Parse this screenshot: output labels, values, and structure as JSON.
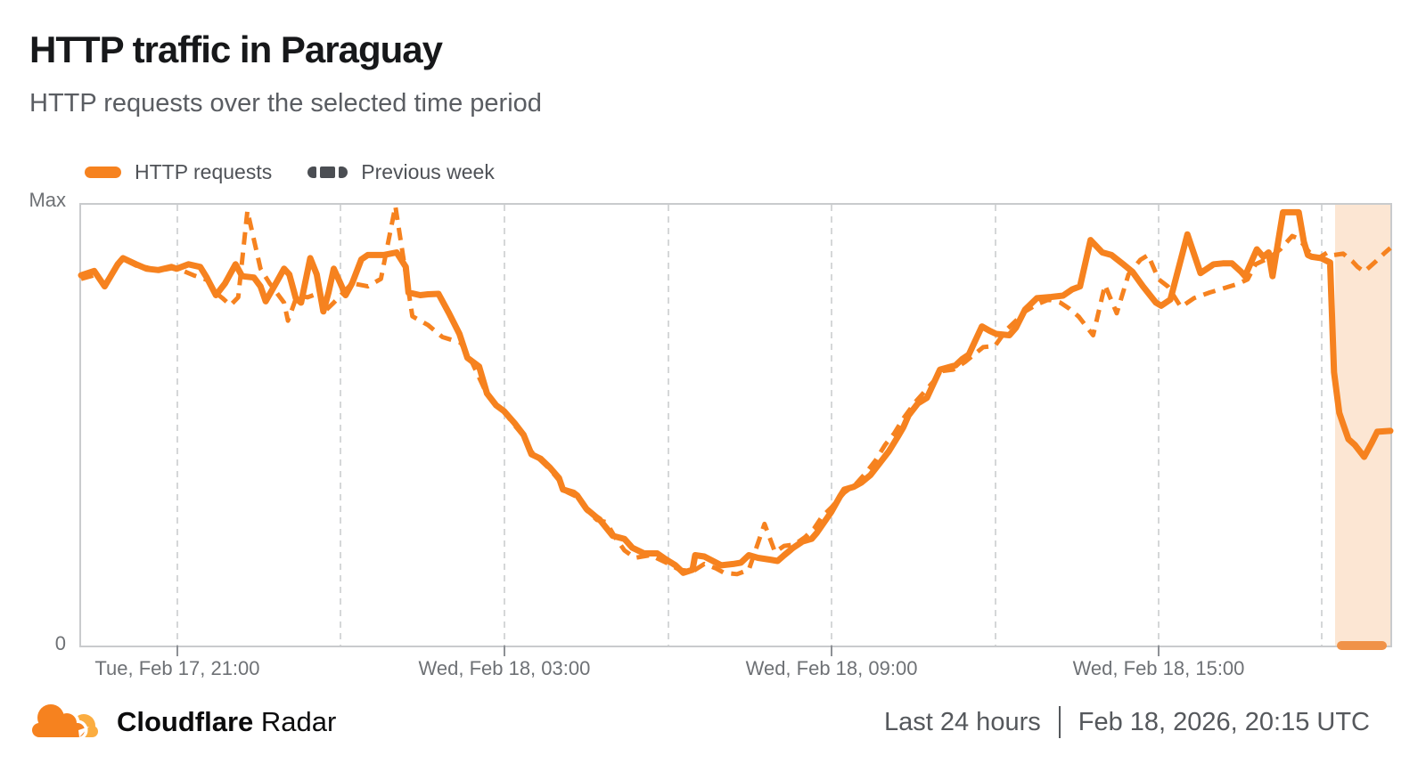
{
  "title": "HTTP traffic in Paraguay",
  "subtitle": "HTTP requests over the selected time period",
  "legend": [
    {
      "label": "HTTP requests",
      "style": "solid",
      "color": "#F6821F"
    },
    {
      "label": "Previous week",
      "style": "dashed",
      "swatch_color": "#4B4E53"
    }
  ],
  "footer": {
    "brand_bold": "Cloudflare",
    "brand_regular": "Radar",
    "time_range": "Last 24 hours",
    "timestamp": "Feb 18, 2026, 20:15 UTC"
  },
  "chart_data": {
    "type": "line",
    "title": "HTTP traffic in Paraguay",
    "xlabel": "",
    "ylabel": "",
    "grid": "vertical-dashed-every-3h",
    "legend_position": "top-left",
    "y_axis": {
      "max_label": "Max",
      "min_label": "0",
      "range": [
        0,
        1
      ]
    },
    "x_gridlines": [
      {
        "f": 0.0735,
        "label": "Tue, Feb 17, 21:00"
      },
      {
        "f": 0.1984,
        "label": ""
      },
      {
        "f": 0.3233,
        "label": "Wed, Feb 18, 03:00"
      },
      {
        "f": 0.4483,
        "label": ""
      },
      {
        "f": 0.5732,
        "label": "Wed, Feb 18, 09:00"
      },
      {
        "f": 0.6981,
        "label": ""
      },
      {
        "f": 0.823,
        "label": "Wed, Feb 18, 15:00"
      },
      {
        "f": 0.9479,
        "label": ""
      }
    ],
    "anomaly_region": {
      "start_f": 0.958,
      "end_f": 1.0,
      "fill": "#FCE6D3",
      "bar_color": "#F09248"
    },
    "series": [
      {
        "name": "HTTP requests",
        "style": "solid",
        "color": "#F6821F",
        "points": [
          [
            0,
            0.84
          ],
          [
            0.01,
            0.85
          ],
          [
            0.018,
            0.815
          ],
          [
            0.028,
            0.865
          ],
          [
            0.032,
            0.879
          ],
          [
            0.042,
            0.865
          ],
          [
            0.05,
            0.855
          ],
          [
            0.059,
            0.852
          ],
          [
            0.069,
            0.859
          ],
          [
            0.073,
            0.855
          ],
          [
            0.082,
            0.865
          ],
          [
            0.091,
            0.859
          ],
          [
            0.096,
            0.835
          ],
          [
            0.103,
            0.795
          ],
          [
            0.11,
            0.822
          ],
          [
            0.118,
            0.865
          ],
          [
            0.123,
            0.838
          ],
          [
            0.132,
            0.835
          ],
          [
            0.137,
            0.815
          ],
          [
            0.141,
            0.781
          ],
          [
            0.15,
            0.828
          ],
          [
            0.155,
            0.855
          ],
          [
            0.159,
            0.842
          ],
          [
            0.164,
            0.788
          ],
          [
            0.168,
            0.778
          ],
          [
            0.175,
            0.879
          ],
          [
            0.18,
            0.842
          ],
          [
            0.185,
            0.758
          ],
          [
            0.189,
            0.801
          ],
          [
            0.193,
            0.855
          ],
          [
            0.198,
            0.822
          ],
          [
            0.202,
            0.795
          ],
          [
            0.207,
            0.822
          ],
          [
            0.214,
            0.876
          ],
          [
            0.219,
            0.886
          ],
          [
            0.231,
            0.886
          ],
          [
            0.241,
            0.892
          ],
          [
            0.248,
            0.859
          ],
          [
            0.25,
            0.801
          ],
          [
            0.259,
            0.795
          ],
          [
            0.265,
            0.797
          ],
          [
            0.273,
            0.798
          ],
          [
            0.281,
            0.754
          ],
          [
            0.289,
            0.707
          ],
          [
            0.295,
            0.653
          ],
          [
            0.304,
            0.633
          ],
          [
            0.31,
            0.572
          ],
          [
            0.317,
            0.545
          ],
          [
            0.323,
            0.532
          ],
          [
            0.331,
            0.505
          ],
          [
            0.338,
            0.478
          ],
          [
            0.344,
            0.434
          ],
          [
            0.351,
            0.424
          ],
          [
            0.358,
            0.404
          ],
          [
            0.365,
            0.38
          ],
          [
            0.368,
            0.354
          ],
          [
            0.376,
            0.347
          ],
          [
            0.379,
            0.34
          ],
          [
            0.386,
            0.31
          ],
          [
            0.394,
            0.29
          ],
          [
            0.396,
            0.286
          ],
          [
            0.406,
            0.249
          ],
          [
            0.415,
            0.242
          ],
          [
            0.421,
            0.222
          ],
          [
            0.43,
            0.209
          ],
          [
            0.44,
            0.209
          ],
          [
            0.447,
            0.195
          ],
          [
            0.454,
            0.182
          ],
          [
            0.46,
            0.165
          ],
          [
            0.467,
            0.172
          ],
          [
            0.469,
            0.205
          ],
          [
            0.476,
            0.202
          ],
          [
            0.485,
            0.188
          ],
          [
            0.489,
            0.182
          ],
          [
            0.498,
            0.185
          ],
          [
            0.504,
            0.188
          ],
          [
            0.51,
            0.205
          ],
          [
            0.517,
            0.199
          ],
          [
            0.526,
            0.195
          ],
          [
            0.532,
            0.192
          ],
          [
            0.537,
            0.205
          ],
          [
            0.544,
            0.222
          ],
          [
            0.551,
            0.236
          ],
          [
            0.558,
            0.242
          ],
          [
            0.562,
            0.256
          ],
          [
            0.569,
            0.286
          ],
          [
            0.573,
            0.303
          ],
          [
            0.58,
            0.34
          ],
          [
            0.583,
            0.354
          ],
          [
            0.59,
            0.36
          ],
          [
            0.596,
            0.37
          ],
          [
            0.603,
            0.387
          ],
          [
            0.61,
            0.414
          ],
          [
            0.617,
            0.441
          ],
          [
            0.624,
            0.475
          ],
          [
            0.628,
            0.495
          ],
          [
            0.632,
            0.522
          ],
          [
            0.639,
            0.549
          ],
          [
            0.646,
            0.562
          ],
          [
            0.656,
            0.626
          ],
          [
            0.668,
            0.636
          ],
          [
            0.673,
            0.65
          ],
          [
            0.678,
            0.66
          ],
          [
            0.688,
            0.724
          ],
          [
            0.694,
            0.714
          ],
          [
            0.699,
            0.707
          ],
          [
            0.709,
            0.704
          ],
          [
            0.714,
            0.721
          ],
          [
            0.721,
            0.762
          ],
          [
            0.73,
            0.788
          ],
          [
            0.741,
            0.791
          ],
          [
            0.75,
            0.794
          ],
          [
            0.757,
            0.808
          ],
          [
            0.763,
            0.815
          ],
          [
            0.771,
            0.92
          ],
          [
            0.78,
            0.892
          ],
          [
            0.787,
            0.886
          ],
          [
            0.796,
            0.865
          ],
          [
            0.803,
            0.848
          ],
          [
            0.811,
            0.815
          ],
          [
            0.821,
            0.778
          ],
          [
            0.825,
            0.771
          ],
          [
            0.832,
            0.785
          ],
          [
            0.845,
            0.933
          ],
          [
            0.855,
            0.845
          ],
          [
            0.865,
            0.865
          ],
          [
            0.872,
            0.867
          ],
          [
            0.879,
            0.867
          ],
          [
            0.886,
            0.848
          ],
          [
            0.889,
            0.838
          ],
          [
            0.898,
            0.899
          ],
          [
            0.903,
            0.882
          ],
          [
            0.907,
            0.892
          ],
          [
            0.91,
            0.838
          ],
          [
            0.918,
            0.983
          ],
          [
            0.93,
            0.983
          ],
          [
            0.934,
            0.916
          ],
          [
            0.937,
            0.886
          ],
          [
            0.94,
            0.882
          ],
          [
            0.947,
            0.879
          ],
          [
            0.954,
            0.869
          ],
          [
            0.957,
            0.62
          ],
          [
            0.961,
            0.528
          ],
          [
            0.964,
            0.502
          ],
          [
            0.968,
            0.468
          ],
          [
            0.973,
            0.455
          ],
          [
            0.98,
            0.428
          ],
          [
            0.986,
            0.461
          ],
          [
            0.99,
            0.485
          ],
          [
            1,
            0.487
          ]
        ]
      },
      {
        "name": "Previous week",
        "style": "dashed",
        "color": "#F6821F",
        "points": [
          [
            0,
            0.832
          ],
          [
            0.01,
            0.84
          ],
          [
            0.018,
            0.82
          ],
          [
            0.028,
            0.862
          ],
          [
            0.032,
            0.877
          ],
          [
            0.042,
            0.862
          ],
          [
            0.05,
            0.858
          ],
          [
            0.059,
            0.85
          ],
          [
            0.069,
            0.856
          ],
          [
            0.078,
            0.85
          ],
          [
            0.086,
            0.84
          ],
          [
            0.096,
            0.83
          ],
          [
            0.103,
            0.8
          ],
          [
            0.108,
            0.788
          ],
          [
            0.114,
            0.772
          ],
          [
            0.12,
            0.79
          ],
          [
            0.127,
            0.986
          ],
          [
            0.137,
            0.855
          ],
          [
            0.144,
            0.822
          ],
          [
            0.155,
            0.778
          ],
          [
            0.158,
            0.737
          ],
          [
            0.165,
            0.795
          ],
          [
            0.173,
            0.79
          ],
          [
            0.182,
            0.8
          ],
          [
            0.186,
            0.758
          ],
          [
            0.193,
            0.778
          ],
          [
            0.2,
            0.8
          ],
          [
            0.207,
            0.822
          ],
          [
            0.219,
            0.815
          ],
          [
            0.229,
            0.832
          ],
          [
            0.24,
            0.997
          ],
          [
            0.253,
            0.747
          ],
          [
            0.265,
            0.727
          ],
          [
            0.276,
            0.7
          ],
          [
            0.29,
            0.687
          ],
          [
            0.299,
            0.64
          ],
          [
            0.31,
            0.57
          ],
          [
            0.317,
            0.545
          ],
          [
            0.323,
            0.53
          ],
          [
            0.331,
            0.5
          ],
          [
            0.338,
            0.475
          ],
          [
            0.344,
            0.44
          ],
          [
            0.351,
            0.42
          ],
          [
            0.358,
            0.4
          ],
          [
            0.365,
            0.375
          ],
          [
            0.37,
            0.35
          ],
          [
            0.379,
            0.337
          ],
          [
            0.386,
            0.307
          ],
          [
            0.394,
            0.285
          ],
          [
            0.401,
            0.28
          ],
          [
            0.408,
            0.245
          ],
          [
            0.415,
            0.216
          ],
          [
            0.423,
            0.199
          ],
          [
            0.435,
            0.205
          ],
          [
            0.449,
            0.185
          ],
          [
            0.457,
            0.172
          ],
          [
            0.467,
            0.168
          ],
          [
            0.476,
            0.185
          ],
          [
            0.485,
            0.175
          ],
          [
            0.491,
            0.165
          ],
          [
            0.501,
            0.162
          ],
          [
            0.51,
            0.172
          ],
          [
            0.522,
            0.276
          ],
          [
            0.53,
            0.212
          ],
          [
            0.537,
            0.226
          ],
          [
            0.545,
            0.229
          ],
          [
            0.553,
            0.246
          ],
          [
            0.56,
            0.266
          ],
          [
            0.566,
            0.293
          ],
          [
            0.573,
            0.313
          ],
          [
            0.583,
            0.347
          ],
          [
            0.592,
            0.367
          ],
          [
            0.6,
            0.394
          ],
          [
            0.607,
            0.421
          ],
          [
            0.614,
            0.455
          ],
          [
            0.621,
            0.481
          ],
          [
            0.628,
            0.515
          ],
          [
            0.637,
            0.552
          ],
          [
            0.646,
            0.582
          ],
          [
            0.658,
            0.623
          ],
          [
            0.666,
            0.626
          ],
          [
            0.675,
            0.643
          ],
          [
            0.689,
            0.677
          ],
          [
            0.698,
            0.68
          ],
          [
            0.707,
            0.717
          ],
          [
            0.714,
            0.737
          ],
          [
            0.721,
            0.758
          ],
          [
            0.73,
            0.774
          ],
          [
            0.739,
            0.785
          ],
          [
            0.748,
            0.778
          ],
          [
            0.755,
            0.764
          ],
          [
            0.762,
            0.746
          ],
          [
            0.773,
            0.704
          ],
          [
            0.782,
            0.818
          ],
          [
            0.791,
            0.754
          ],
          [
            0.8,
            0.842
          ],
          [
            0.809,
            0.875
          ],
          [
            0.815,
            0.886
          ],
          [
            0.823,
            0.831
          ],
          [
            0.83,
            0.815
          ],
          [
            0.84,
            0.768
          ],
          [
            0.85,
            0.788
          ],
          [
            0.862,
            0.801
          ],
          [
            0.873,
            0.811
          ],
          [
            0.884,
            0.821
          ],
          [
            0.891,
            0.831
          ],
          [
            0.897,
            0.865
          ],
          [
            0.907,
            0.879
          ],
          [
            0.916,
            0.899
          ],
          [
            0.925,
            0.929
          ],
          [
            0.93,
            0.923
          ],
          [
            0.939,
            0.889
          ],
          [
            0.945,
            0.879
          ],
          [
            0.952,
            0.892
          ],
          [
            0.957,
            0.886
          ],
          [
            0.964,
            0.889
          ],
          [
            0.971,
            0.872
          ],
          [
            0.975,
            0.859
          ],
          [
            0.98,
            0.848
          ],
          [
            0.988,
            0.869
          ],
          [
            0.995,
            0.889
          ],
          [
            1,
            0.902
          ]
        ]
      }
    ]
  }
}
